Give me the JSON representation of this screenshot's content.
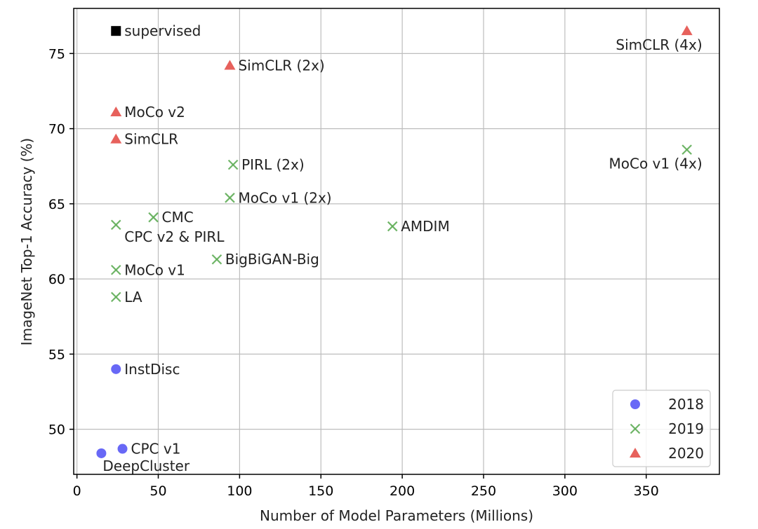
{
  "chart_data": {
    "type": "scatter",
    "title": "",
    "xlabel": "Number of Model Parameters (Millions)",
    "ylabel": "ImageNet Top-1 Accuracy (%)",
    "xlim": [
      -2,
      395
    ],
    "ylim": [
      47,
      78
    ],
    "xticks": [
      0,
      50,
      100,
      150,
      200,
      250,
      300,
      350
    ],
    "yticks": [
      50,
      55,
      60,
      65,
      70,
      75
    ],
    "grid": true,
    "legend_position": "bottom-right",
    "series": [
      {
        "name": "2018",
        "marker": "circle",
        "color": "#4d4df5"
      },
      {
        "name": "2019",
        "marker": "x",
        "color": "#5fad56"
      },
      {
        "name": "2020",
        "marker": "triangle",
        "color": "#e4504a"
      },
      {
        "name": "",
        "marker": "square",
        "color": "#000000"
      }
    ],
    "points": [
      {
        "label": "supervised",
        "x": 24,
        "y": 76.5,
        "series": 3,
        "label_pos": "right"
      },
      {
        "label": "SimCLR (4x)",
        "x": 375,
        "y": 76.5,
        "series": 2,
        "label_pos": "below-left"
      },
      {
        "label": "SimCLR (2x)",
        "x": 94,
        "y": 74.2,
        "series": 2,
        "label_pos": "right"
      },
      {
        "label": "MoCo v2",
        "x": 24,
        "y": 71.1,
        "series": 2,
        "label_pos": "right"
      },
      {
        "label": "SimCLR",
        "x": 24,
        "y": 69.3,
        "series": 2,
        "label_pos": "right"
      },
      {
        "label": "MoCo v1 (4x)",
        "x": 375,
        "y": 68.6,
        "series": 1,
        "label_pos": "below-left"
      },
      {
        "label": "PIRL (2x)",
        "x": 96,
        "y": 67.6,
        "series": 1,
        "label_pos": "right"
      },
      {
        "label": "MoCo v1 (2x)",
        "x": 94,
        "y": 65.4,
        "series": 1,
        "label_pos": "right"
      },
      {
        "label": "CMC",
        "x": 47,
        "y": 64.1,
        "series": 1,
        "label_pos": "right"
      },
      {
        "label": "CPC v2 & PIRL",
        "x": 24,
        "y": 63.6,
        "series": 1,
        "label_pos": "below-right"
      },
      {
        "label": "AMDIM",
        "x": 194,
        "y": 63.5,
        "series": 1,
        "label_pos": "right"
      },
      {
        "label": "BigBiGAN-Big",
        "x": 86,
        "y": 61.3,
        "series": 1,
        "label_pos": "right"
      },
      {
        "label": "MoCo v1",
        "x": 24,
        "y": 60.6,
        "series": 1,
        "label_pos": "right"
      },
      {
        "label": "LA",
        "x": 24,
        "y": 58.8,
        "series": 1,
        "label_pos": "right"
      },
      {
        "label": "InstDisc",
        "x": 24,
        "y": 54.0,
        "series": 0,
        "label_pos": "right"
      },
      {
        "label": "CPC v1",
        "x": 28,
        "y": 48.7,
        "series": 0,
        "label_pos": "right"
      },
      {
        "label": "DeepCluster",
        "x": 15,
        "y": 48.4,
        "series": 0,
        "label_pos": "below-right"
      }
    ]
  }
}
